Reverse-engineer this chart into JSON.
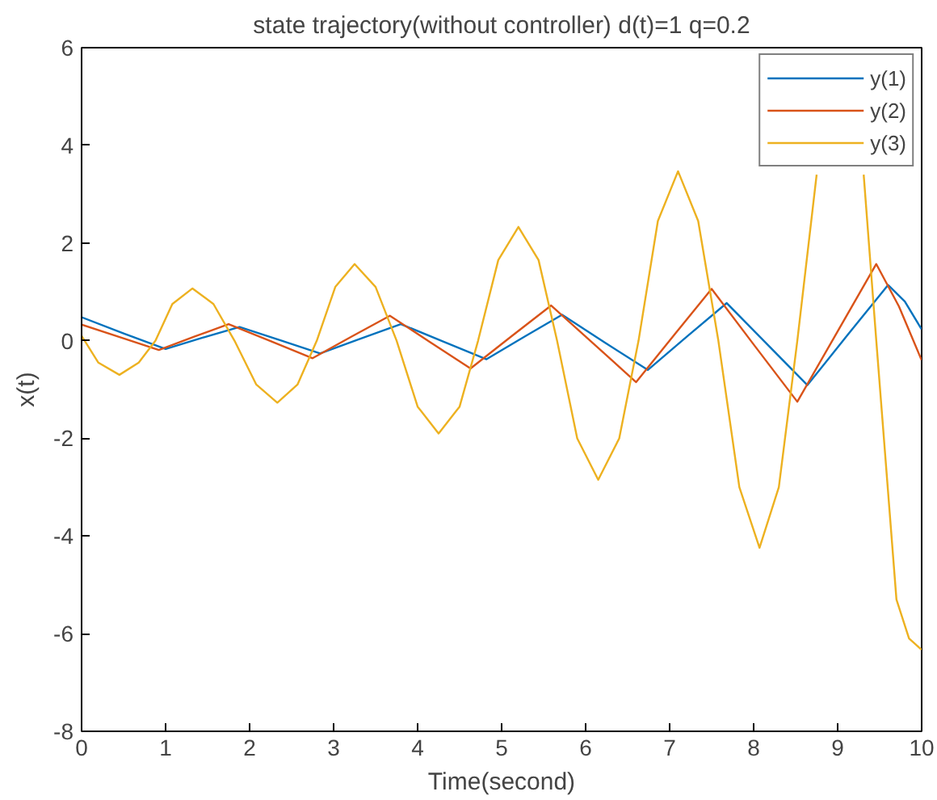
{
  "chart_data": {
    "type": "line",
    "title": "state trajectory(without controller) d(t)=1 q=0.2",
    "xlabel": "Time(second)",
    "ylabel": "x(t)",
    "xlim": [
      0,
      10
    ],
    "ylim": [
      -8,
      6
    ],
    "xticks": [
      0,
      1,
      2,
      3,
      4,
      5,
      6,
      7,
      8,
      9,
      10
    ],
    "yticks": [
      -8,
      -6,
      -4,
      -2,
      0,
      2,
      4,
      6
    ],
    "grid": false,
    "legend": "top right",
    "marker": "none",
    "line_style": "solid",
    "series": [
      {
        "name": "y(1)",
        "color": "#0072bd",
        "x": [
          0,
          0.5,
          1.0,
          1.44,
          1.88,
          2.36,
          2.84,
          3.32,
          3.8,
          4.31,
          4.82,
          5.27,
          5.72,
          6.23,
          6.74,
          7.21,
          7.68,
          8.16,
          8.64,
          9.12,
          9.6,
          9.8,
          10
        ],
        "values": [
          0.48,
          0.15,
          -0.17,
          0.06,
          0.28,
          0.01,
          -0.26,
          0.04,
          0.34,
          -0.02,
          -0.38,
          0.08,
          0.53,
          -0.04,
          -0.6,
          0.09,
          0.77,
          -0.07,
          -0.91,
          0.12,
          1.14,
          0.8,
          0.23
        ]
      },
      {
        "name": "y(2)",
        "color": "#d95319",
        "x": [
          0,
          0.46,
          0.92,
          1.34,
          1.75,
          2.25,
          2.75,
          3.21,
          3.67,
          4.15,
          4.63,
          5.11,
          5.59,
          6.1,
          6.6,
          7.05,
          7.5,
          8.01,
          8.52,
          8.99,
          9.46,
          9.73,
          10
        ],
        "values": [
          0.33,
          0.07,
          -0.19,
          0.08,
          0.34,
          -0.01,
          -0.36,
          0.08,
          0.51,
          -0.03,
          -0.57,
          0.08,
          0.72,
          -0.07,
          -0.85,
          0.11,
          1.06,
          -0.1,
          -1.25,
          0.16,
          1.57,
          0.7,
          -0.4
        ]
      },
      {
        "name": "y(3)",
        "color": "#edb120",
        "x": [
          0,
          0.2,
          0.45,
          0.68,
          0.88,
          1.08,
          1.32,
          1.57,
          1.82,
          2.08,
          2.33,
          2.57,
          2.8,
          3.02,
          3.25,
          3.5,
          3.75,
          4.0,
          4.25,
          4.5,
          4.72,
          4.96,
          5.2,
          5.44,
          5.66,
          5.9,
          6.15,
          6.4,
          6.63,
          6.86,
          7.1,
          7.34,
          7.58,
          7.83,
          8.07,
          8.3,
          8.52,
          8.75,
          9.03,
          9.31,
          9.46,
          9.7,
          9.85,
          10
        ],
        "values": [
          0.1,
          -0.45,
          -0.7,
          -0.45,
          0,
          0.75,
          1.07,
          0.75,
          0,
          -0.9,
          -1.27,
          -0.9,
          0,
          1.1,
          1.57,
          1.1,
          0,
          -1.35,
          -1.9,
          -1.35,
          0,
          1.65,
          2.33,
          1.65,
          0,
          -2.0,
          -2.85,
          -2.0,
          0,
          2.45,
          3.47,
          2.45,
          0,
          -3.0,
          -4.24,
          -3.0,
          0,
          3.4,
          null,
          3.4,
          0,
          -5.3,
          -6.1,
          -6.33
        ]
      }
    ]
  }
}
